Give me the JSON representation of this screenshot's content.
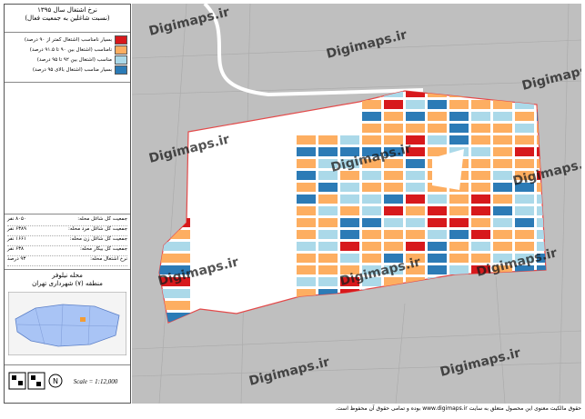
{
  "legend": {
    "title": "نرخ اشتغال سال ۱۳۹۵",
    "subtitle": "(نسبت شاغلین به جمعیت فعال)",
    "items": [
      {
        "label": "بسیار نامناسب (اشتغال کمتر از ۹۰ درصد)",
        "color": "#d7191c"
      },
      {
        "label": "نامناسب (اشتغال بین ۹۰ تا ۹۱.۵ درصد)",
        "color": "#fdae61"
      },
      {
        "label": "مناسب (اشتغال بین ۹۲ تا ۹۵ درصد)",
        "color": "#abd9e9"
      },
      {
        "label": "بسیار مناسب (اشتغال بالای ۹۵ درصد)",
        "color": "#2c7bb6"
      }
    ]
  },
  "stats": [
    {
      "label": "جمعیت کل شاغل محله:",
      "value": "۸۰۵۰ نفر"
    },
    {
      "label": "جمعیت کل شاغل مرد محله:",
      "value": "۶۳۸۹ نفر"
    },
    {
      "label": "جمعیت کل شاغل زن محله:",
      "value": "۱۶۶۱ نفر"
    },
    {
      "label": "جمعیت کل بیکار محله:",
      "value": "۶۳۸ نفر"
    },
    {
      "label": "نرخ اشتغال محله:",
      "value": "۹۳ درصد"
    }
  ],
  "location": {
    "neighborhood": "محله نیلوفر",
    "district": "منطقه (۷) شهرداری تهران"
  },
  "scale": "Scale = 1:12,000",
  "watermark": "Digimaps.ir",
  "footer": "حقوق مالکیت معنوی این محصول متعلق به سایت www.digimaps.ir بوده و تمامی حقوق آن محفوظ است."
}
